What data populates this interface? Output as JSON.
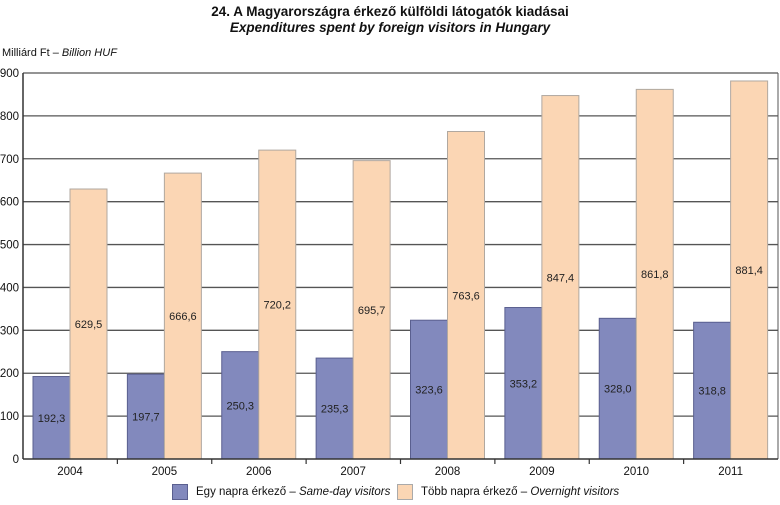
{
  "chart_data": {
    "type": "bar",
    "title": "24.  A Magyarországra érkező külföldi látogatók kiadásai",
    "subtitle": "Expenditures spent by foreign visitors in Hungary",
    "ylabel_hu": "Milliárd Ft – ",
    "ylabel_en": "Billion HUF",
    "xlabel": "",
    "ylim": [
      0,
      900
    ],
    "yticks": [
      "0",
      "100",
      "200",
      "300",
      "400",
      "500",
      "600",
      "700",
      "800",
      "900"
    ],
    "grid": true,
    "legend_position": "bottom",
    "categories": [
      "2004",
      "2005",
      "2006",
      "2007",
      "2008",
      "2009",
      "2010",
      "2011"
    ],
    "series": [
      {
        "name_hu": "Egy napra érkező – ",
        "name_en": "Same-day visitors",
        "color": "#8289bd",
        "values": [
          192.3,
          197.7,
          250.3,
          235.3,
          323.6,
          353.2,
          328.0,
          318.8
        ],
        "labels": [
          "192,3",
          "197,7",
          "250,3",
          "235,3",
          "323,6",
          "353,2",
          "328,0",
          "318,8"
        ]
      },
      {
        "name_hu": "Több napra érkező – ",
        "name_en": "Overnight visitors",
        "color": "#fbd6b4",
        "values": [
          629.5,
          666.6,
          720.2,
          695.7,
          763.6,
          847.4,
          861.8,
          881.4
        ],
        "labels": [
          "629,5",
          "666,6",
          "720,2",
          "695,7",
          "763,6",
          "847,4",
          "861,8",
          "881,4"
        ]
      }
    ]
  }
}
